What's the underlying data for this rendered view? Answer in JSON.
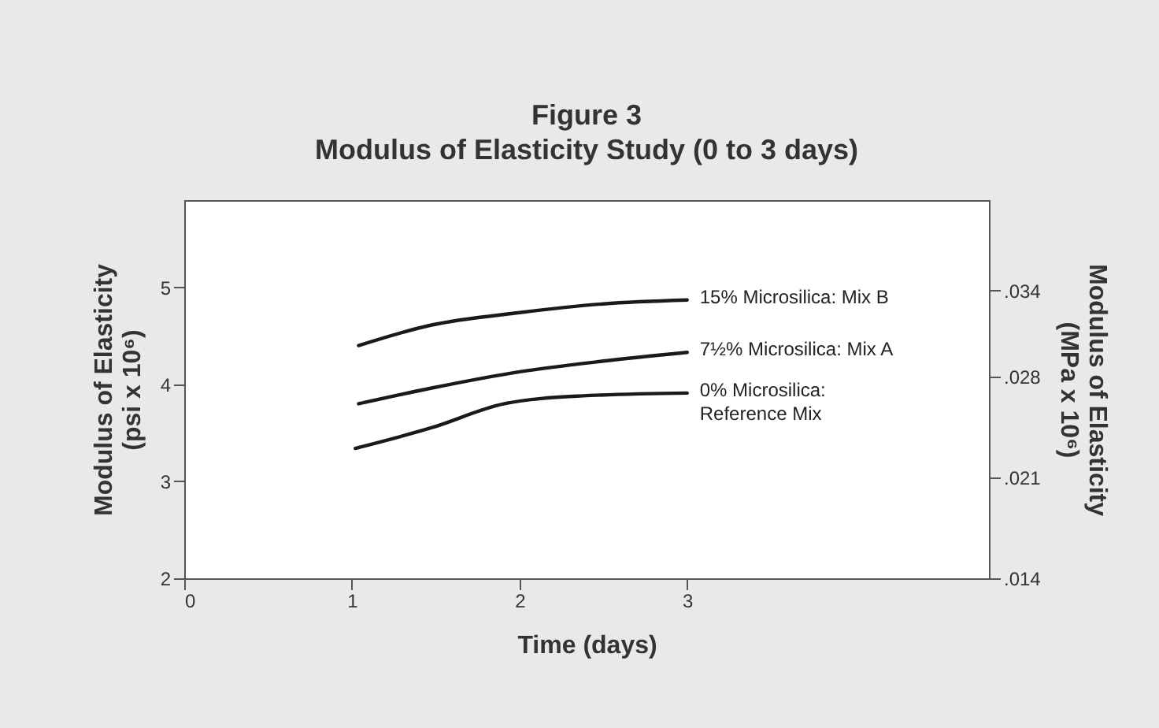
{
  "chart_data": {
    "type": "line",
    "title": "Figure 3",
    "subtitle": "Modulus of Elasticity Study (0 to 3 days)",
    "xlabel": "Time (days)",
    "ylabel": "Modulus of Elasticity (psi x 10⁶)",
    "y2label": "Modulus of Elasticity (MPa x 10⁶)",
    "xlim": [
      0,
      4.8
    ],
    "xticks": [
      0,
      1,
      2,
      3
    ],
    "ylim": [
      2,
      5.9
    ],
    "yticks": [
      2,
      3,
      4,
      5
    ],
    "y2lim": [
      0.014,
      0.0403
    ],
    "y2ticks": [
      {
        "value": 0.014,
        "label": ".014"
      },
      {
        "value": 0.021,
        "label": ".021"
      },
      {
        "value": 0.028,
        "label": ".028"
      },
      {
        "value": 0.034,
        "label": ".034"
      }
    ],
    "grid": false,
    "legend": false,
    "marker": "none",
    "line_style": "solid",
    "series": [
      {
        "name": "15% Microsilica: Mix B",
        "color": "#1a1a1a",
        "x": [
          1.04,
          1.47,
          2,
          2.5,
          3
        ],
        "values": [
          4.4,
          4.61,
          4.74,
          4.83,
          4.87
        ]
      },
      {
        "name": "7½% Microsilica: Mix A",
        "color": "#1a1a1a",
        "x": [
          1.04,
          1.47,
          2,
          2.5,
          3
        ],
        "values": [
          3.8,
          3.96,
          4.13,
          4.24,
          4.33
        ]
      },
      {
        "name": "0% Microsilica: Reference Mix",
        "color": "#1a1a1a",
        "x": [
          1.02,
          1.47,
          1.91,
          2.36,
          3
        ],
        "values": [
          3.34,
          3.55,
          3.8,
          3.88,
          3.91
        ]
      }
    ]
  }
}
